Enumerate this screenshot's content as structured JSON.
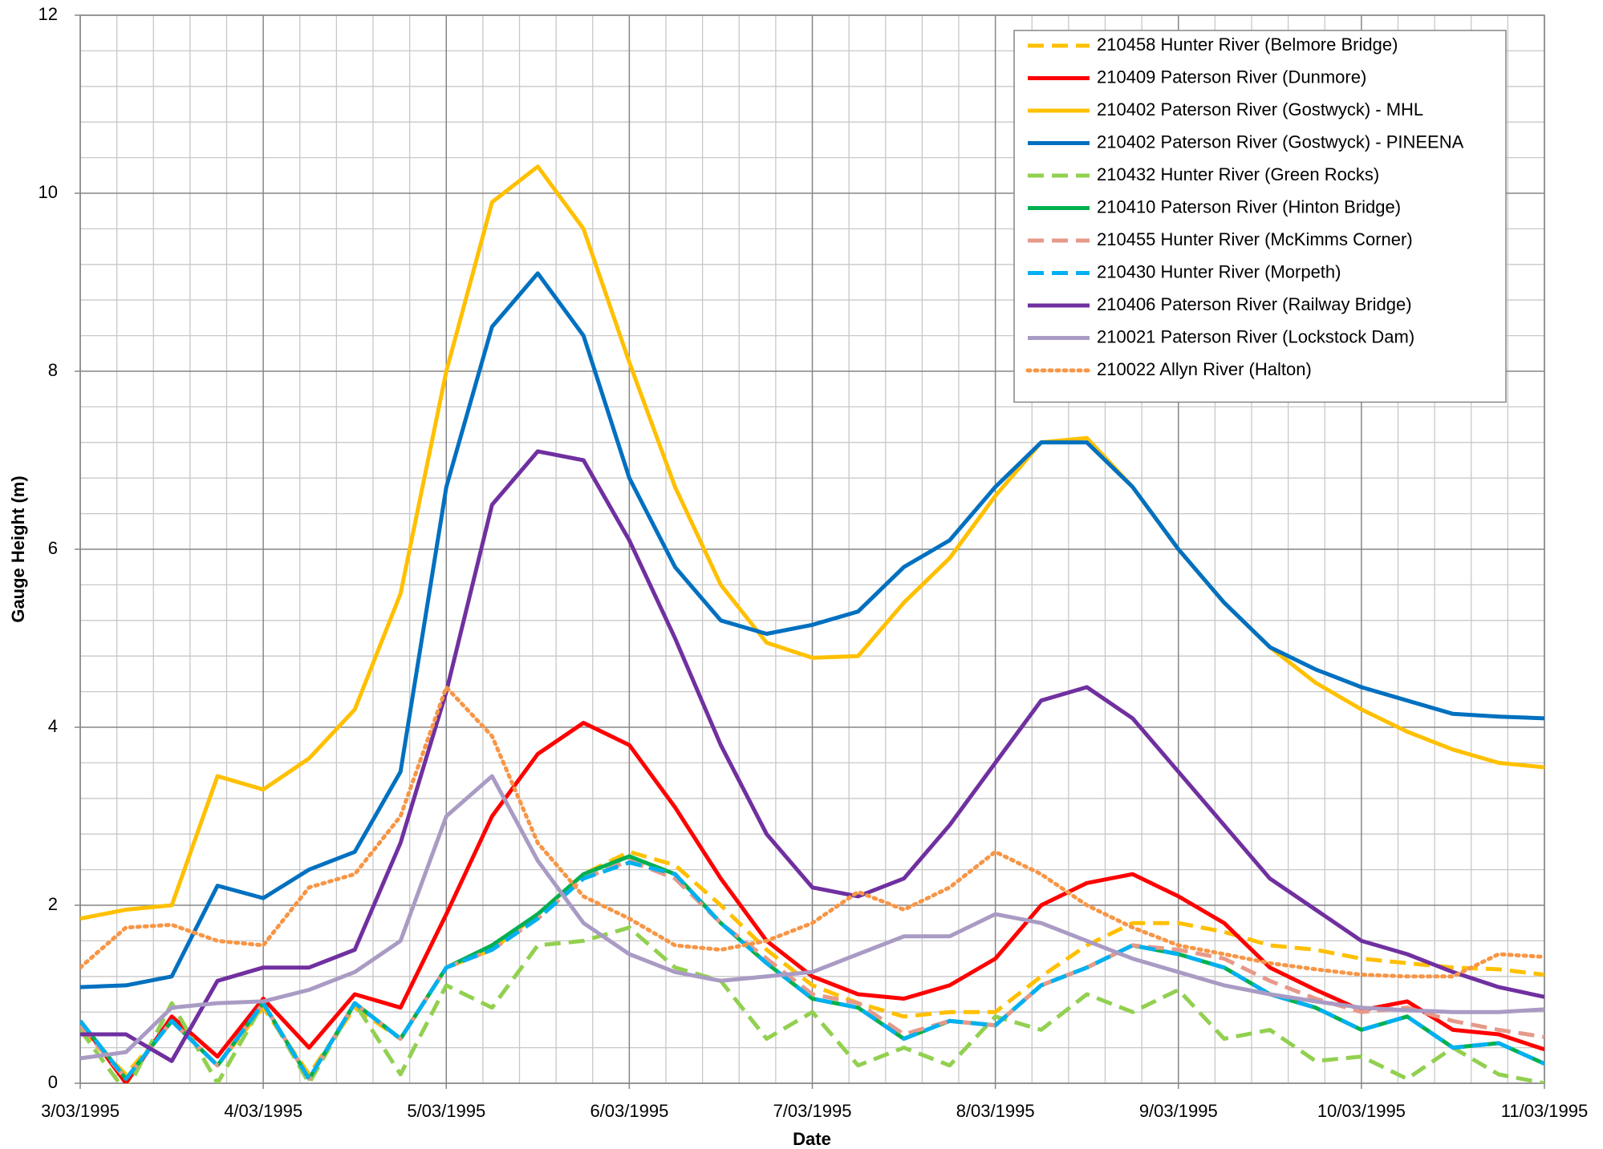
{
  "chart_data": {
    "type": "line",
    "xlabel": "Date",
    "ylabel": "Gauge Height (m)",
    "x": [
      "1995-03-03T00:00",
      "1995-03-03T06:00",
      "1995-03-03T12:00",
      "1995-03-03T18:00",
      "1995-03-04T00:00",
      "1995-03-04T06:00",
      "1995-03-04T12:00",
      "1995-03-04T18:00",
      "1995-03-05T00:00",
      "1995-03-05T06:00",
      "1995-03-05T12:00",
      "1995-03-05T18:00",
      "1995-03-06T00:00",
      "1995-03-06T06:00",
      "1995-03-06T12:00",
      "1995-03-06T18:00",
      "1995-03-07T00:00",
      "1995-03-07T06:00",
      "1995-03-07T12:00",
      "1995-03-07T18:00",
      "1995-03-08T00:00",
      "1995-03-08T06:00",
      "1995-03-08T12:00",
      "1995-03-08T18:00",
      "1995-03-09T00:00",
      "1995-03-09T06:00",
      "1995-03-09T12:00",
      "1995-03-09T18:00",
      "1995-03-10T00:00",
      "1995-03-10T06:00",
      "1995-03-10T12:00",
      "1995-03-10T18:00",
      "1995-03-11T00:00"
    ],
    "xlim": [
      "1995-03-03T00:00",
      "1995-03-11T00:00"
    ],
    "xticks": [
      {
        "value": "1995-03-03T00:00",
        "label": "3/03/1995"
      },
      {
        "value": "1995-03-04T00:00",
        "label": "4/03/1995"
      },
      {
        "value": "1995-03-05T00:00",
        "label": "5/03/1995"
      },
      {
        "value": "1995-03-06T00:00",
        "label": "6/03/1995"
      },
      {
        "value": "1995-03-07T00:00",
        "label": "7/03/1995"
      },
      {
        "value": "1995-03-08T00:00",
        "label": "8/03/1995"
      },
      {
        "value": "1995-03-09T00:00",
        "label": "9/03/1995"
      },
      {
        "value": "1995-03-10T00:00",
        "label": "10/03/1995"
      },
      {
        "value": "1995-03-11T00:00",
        "label": "11/03/1995"
      }
    ],
    "ylim": [
      0,
      12
    ],
    "yticks": [
      0,
      2,
      4,
      6,
      8,
      10,
      12
    ],
    "grid": true,
    "minor_grid": true,
    "legend": "upper right",
    "series": [
      {
        "name": "210458 Hunter River (Belmore Bridge)",
        "color": "#ffc000",
        "style": "dashed",
        "values": [
          0.6,
          0.1,
          0.7,
          0.2,
          0.85,
          0.1,
          0.85,
          0.5,
          1.3,
          1.5,
          1.9,
          2.35,
          2.6,
          2.45,
          2.0,
          1.5,
          1.1,
          0.9,
          0.75,
          0.8,
          0.8,
          1.2,
          1.55,
          1.8,
          1.8,
          1.7,
          1.55,
          1.5,
          1.4,
          1.35,
          1.3,
          1.28,
          1.22
        ]
      },
      {
        "name": "210409 Paterson River (Dunmore)",
        "color": "#ff0000",
        "style": "solid",
        "values": [
          0.7,
          0.0,
          0.75,
          0.3,
          0.95,
          0.4,
          1.0,
          0.85,
          1.9,
          3.0,
          3.7,
          4.05,
          3.8,
          3.1,
          2.3,
          1.6,
          1.2,
          1.0,
          0.95,
          1.1,
          1.4,
          2.0,
          2.25,
          2.35,
          2.1,
          1.8,
          1.3,
          1.05,
          0.82,
          0.92,
          0.6,
          0.55,
          0.38
        ]
      },
      {
        "name": "210402 Paterson River (Gostwyck) - MHL",
        "color": "#ffc000",
        "style": "solid",
        "values": [
          1.85,
          1.95,
          2.0,
          3.45,
          3.3,
          3.65,
          4.2,
          5.5,
          8.0,
          9.9,
          10.3,
          9.6,
          8.1,
          6.7,
          5.6,
          4.95,
          4.78,
          4.8,
          5.4,
          5.9,
          6.6,
          7.2,
          7.25,
          6.7,
          6.0,
          5.4,
          4.9,
          4.5,
          4.2,
          3.95,
          3.75,
          3.6,
          3.55
        ]
      },
      {
        "name": "210402 Paterson River (Gostwyck) - PINEENA",
        "color": "#0070c0",
        "style": "solid",
        "values": [
          1.08,
          1.1,
          1.2,
          2.22,
          2.08,
          2.4,
          2.6,
          3.5,
          6.7,
          8.5,
          9.1,
          8.4,
          6.8,
          5.8,
          5.2,
          5.05,
          5.15,
          5.3,
          5.8,
          6.1,
          6.7,
          7.2,
          7.2,
          6.7,
          6.0,
          5.4,
          4.9,
          4.65,
          4.45,
          4.3,
          4.15,
          4.12,
          4.1
        ]
      },
      {
        "name": "210432 Hunter River (Green Rocks)",
        "color": "#92d050",
        "style": "dashed",
        "values": [
          0.6,
          -0.1,
          0.9,
          0.0,
          0.9,
          0.0,
          0.9,
          0.1,
          1.1,
          0.85,
          1.55,
          1.6,
          1.75,
          1.3,
          1.15,
          0.5,
          0.8,
          0.2,
          0.4,
          0.2,
          0.75,
          0.6,
          1.0,
          0.8,
          1.05,
          0.5,
          0.6,
          0.25,
          0.3,
          0.05,
          0.4,
          0.1,
          0.0
        ]
      },
      {
        "name": "210410 Paterson River (Hinton Bridge)",
        "color": "#00b050",
        "style": "solid",
        "values": [
          0.7,
          0.05,
          0.7,
          0.2,
          0.9,
          0.05,
          0.9,
          0.5,
          1.3,
          1.55,
          1.9,
          2.35,
          2.55,
          2.35,
          1.8,
          1.35,
          0.95,
          0.85,
          0.5,
          0.7,
          0.65,
          1.1,
          1.3,
          1.55,
          1.45,
          1.3,
          1.0,
          0.85,
          0.6,
          0.75,
          0.4,
          0.45,
          0.22
        ]
      },
      {
        "name": "210455 Hunter River (McKimms Corner)",
        "color": "#e6998a",
        "style": "dashed",
        "values": [
          0.65,
          0.05,
          0.7,
          0.2,
          0.9,
          0.05,
          0.9,
          0.5,
          1.3,
          1.5,
          1.85,
          2.3,
          2.5,
          2.3,
          1.8,
          1.4,
          1.0,
          0.9,
          0.55,
          0.7,
          0.65,
          1.1,
          1.3,
          1.55,
          1.5,
          1.4,
          1.15,
          0.95,
          0.8,
          0.85,
          0.7,
          0.6,
          0.52
        ]
      },
      {
        "name": "210430 Hunter River (Morpeth)",
        "color": "#00b0f0",
        "style": "dashed",
        "values": [
          0.7,
          0.05,
          0.7,
          0.2,
          0.9,
          0.05,
          0.9,
          0.5,
          1.3,
          1.5,
          1.85,
          2.3,
          2.48,
          2.35,
          1.8,
          1.35,
          0.95,
          0.85,
          0.5,
          0.7,
          0.65,
          1.1,
          1.3,
          1.55,
          1.45,
          1.3,
          1.0,
          0.85,
          0.6,
          0.75,
          0.4,
          0.45,
          0.22
        ]
      },
      {
        "name": "210406 Paterson River (Railway Bridge)",
        "color": "#7030a0",
        "style": "solid",
        "values": [
          0.55,
          0.55,
          0.25,
          1.15,
          1.3,
          1.3,
          1.5,
          2.7,
          4.4,
          6.5,
          7.1,
          7.0,
          6.1,
          5.0,
          3.8,
          2.8,
          2.2,
          2.1,
          2.3,
          2.9,
          3.6,
          4.3,
          4.45,
          4.1,
          3.5,
          2.9,
          2.3,
          1.95,
          1.6,
          1.45,
          1.25,
          1.08,
          0.97
        ]
      },
      {
        "name": "210021 Paterson River (Lockstock Dam)",
        "color": "#a99bc4",
        "style": "solid",
        "values": [
          0.28,
          0.35,
          0.85,
          0.9,
          0.92,
          1.05,
          1.25,
          1.6,
          3.0,
          3.45,
          2.5,
          1.8,
          1.45,
          1.25,
          1.15,
          1.2,
          1.25,
          1.45,
          1.65,
          1.65,
          1.9,
          1.8,
          1.6,
          1.4,
          1.25,
          1.1,
          1.0,
          0.92,
          0.85,
          0.82,
          0.8,
          0.8,
          0.83
        ]
      },
      {
        "name": "210022 Allyn River (Halton)",
        "color": "#f79646",
        "style": "dotted",
        "values": [
          1.3,
          1.75,
          1.78,
          1.6,
          1.55,
          2.2,
          2.35,
          3.0,
          4.45,
          3.9,
          2.7,
          2.1,
          1.85,
          1.55,
          1.5,
          1.6,
          1.8,
          2.15,
          1.95,
          2.2,
          2.6,
          2.35,
          2.0,
          1.75,
          1.55,
          1.45,
          1.35,
          1.28,
          1.22,
          1.2,
          1.2,
          1.45,
          1.42
        ]
      }
    ]
  }
}
